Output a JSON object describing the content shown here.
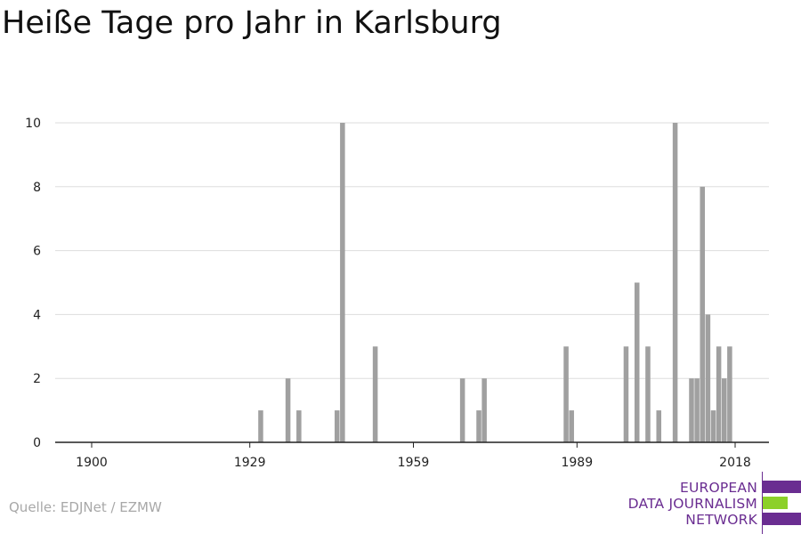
{
  "title": "Heiße Tage pro Jahr in Karlsburg",
  "source": "Quelle: EDJNet / EZMW",
  "logo": {
    "line1": "EUROPEAN",
    "line2": "DATA JOURNALISM",
    "line3": "NETWORK",
    "colors": {
      "purple": "#6a2d91",
      "green": "#8cd02a"
    }
  },
  "chart_data": {
    "type": "bar",
    "bar_color": "#a0a0a0",
    "grid": true,
    "xlim": [
      1894,
      2026
    ],
    "ylim": [
      0,
      10
    ],
    "xticks": [
      1900,
      1929,
      1959,
      1989,
      2018
    ],
    "yticks": [
      0,
      2,
      4,
      6,
      8,
      10
    ],
    "x": [
      1931,
      1936,
      1938,
      1945,
      1946,
      1952,
      1968,
      1971,
      1972,
      1987,
      1988,
      1998,
      2000,
      2002,
      2004,
      2007,
      2010,
      2011,
      2012,
      2013,
      2014,
      2015,
      2016,
      2017,
      2018
    ],
    "values": [
      1,
      2,
      1,
      1,
      10,
      3,
      2,
      1,
      2,
      3,
      1,
      3,
      5,
      3,
      1,
      10,
      2,
      2,
      8,
      4,
      1,
      3,
      2,
      3,
      0
    ]
  }
}
